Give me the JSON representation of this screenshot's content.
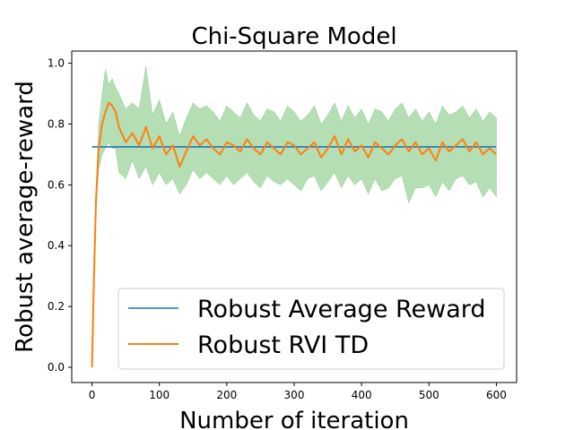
{
  "chart_data": {
    "type": "line",
    "title": "Chi-Square Model",
    "xlabel": "Number of iteration",
    "ylabel": "Robust average-reward",
    "xlim": [
      -30,
      630
    ],
    "ylim": [
      -0.05,
      1.04
    ],
    "xticks": [
      "0",
      "100",
      "200",
      "300",
      "400",
      "500",
      "600"
    ],
    "yticks": [
      "0.0",
      "0.2",
      "0.4",
      "0.6",
      "0.8",
      "1.0"
    ],
    "legend_position": "lower-right",
    "series": [
      {
        "name": "Robust Average Reward",
        "color": "#1f77b4",
        "x": [
          0,
          600
        ],
        "y": [
          0.725,
          0.725
        ]
      },
      {
        "name": "Robust RVI TD",
        "color": "#ff7f0e",
        "x": [
          0,
          3,
          6,
          10,
          15,
          20,
          25,
          30,
          35,
          40,
          50,
          60,
          70,
          80,
          90,
          100,
          110,
          120,
          130,
          140,
          150,
          160,
          170,
          180,
          190,
          200,
          210,
          220,
          230,
          240,
          250,
          260,
          270,
          280,
          290,
          300,
          310,
          320,
          330,
          340,
          350,
          360,
          370,
          380,
          390,
          400,
          410,
          420,
          430,
          440,
          450,
          460,
          470,
          480,
          490,
          500,
          510,
          520,
          530,
          540,
          550,
          560,
          570,
          580,
          590,
          600
        ],
        "y": [
          0.0,
          0.3,
          0.55,
          0.72,
          0.8,
          0.84,
          0.87,
          0.86,
          0.84,
          0.79,
          0.74,
          0.77,
          0.73,
          0.79,
          0.72,
          0.76,
          0.7,
          0.73,
          0.66,
          0.71,
          0.76,
          0.73,
          0.75,
          0.72,
          0.7,
          0.74,
          0.73,
          0.71,
          0.75,
          0.72,
          0.7,
          0.74,
          0.72,
          0.7,
          0.74,
          0.73,
          0.7,
          0.72,
          0.74,
          0.69,
          0.72,
          0.76,
          0.7,
          0.75,
          0.71,
          0.73,
          0.69,
          0.74,
          0.72,
          0.7,
          0.73,
          0.75,
          0.71,
          0.74,
          0.7,
          0.72,
          0.68,
          0.74,
          0.71,
          0.73,
          0.75,
          0.71,
          0.74,
          0.7,
          0.72,
          0.7
        ]
      }
    ],
    "band": {
      "name": "confidence band",
      "color": "#2ca02c",
      "x": [
        0,
        3,
        6,
        10,
        15,
        20,
        25,
        30,
        35,
        40,
        50,
        60,
        70,
        80,
        90,
        100,
        110,
        120,
        130,
        140,
        150,
        160,
        170,
        180,
        190,
        200,
        210,
        220,
        230,
        240,
        250,
        260,
        270,
        280,
        290,
        300,
        310,
        320,
        330,
        340,
        350,
        360,
        370,
        380,
        390,
        400,
        410,
        420,
        430,
        440,
        450,
        460,
        470,
        480,
        490,
        500,
        510,
        520,
        530,
        540,
        550,
        560,
        570,
        580,
        590,
        600
      ],
      "lower": [
        0.0,
        0.28,
        0.52,
        0.65,
        0.7,
        0.72,
        0.74,
        0.72,
        0.72,
        0.64,
        0.62,
        0.68,
        0.62,
        0.66,
        0.6,
        0.64,
        0.6,
        0.62,
        0.57,
        0.6,
        0.65,
        0.62,
        0.64,
        0.62,
        0.6,
        0.63,
        0.6,
        0.62,
        0.64,
        0.61,
        0.59,
        0.63,
        0.61,
        0.6,
        0.62,
        0.6,
        0.58,
        0.62,
        0.63,
        0.58,
        0.61,
        0.64,
        0.59,
        0.63,
        0.6,
        0.62,
        0.57,
        0.62,
        0.58,
        0.59,
        0.62,
        0.63,
        0.54,
        0.59,
        0.59,
        0.6,
        0.56,
        0.61,
        0.58,
        0.62,
        0.63,
        0.6,
        0.61,
        0.56,
        0.59,
        0.56
      ],
      "upper": [
        0.0,
        0.32,
        0.58,
        0.8,
        0.9,
        0.98,
        0.93,
        0.95,
        0.92,
        0.9,
        0.85,
        0.87,
        0.85,
        0.99,
        0.83,
        0.88,
        0.8,
        0.84,
        0.76,
        0.82,
        0.87,
        0.85,
        0.86,
        0.84,
        0.81,
        0.86,
        0.84,
        0.82,
        0.87,
        0.83,
        0.81,
        0.85,
        0.84,
        0.81,
        0.86,
        0.84,
        0.81,
        0.83,
        0.86,
        0.8,
        0.83,
        0.87,
        0.81,
        0.86,
        0.82,
        0.85,
        0.8,
        0.85,
        0.84,
        0.81,
        0.85,
        0.87,
        0.82,
        0.85,
        0.81,
        0.84,
        0.8,
        0.86,
        0.83,
        0.84,
        0.86,
        0.82,
        0.85,
        0.81,
        0.84,
        0.82
      ]
    }
  }
}
